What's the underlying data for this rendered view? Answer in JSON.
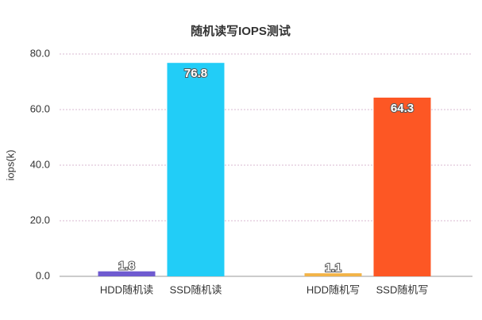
{
  "chart_data": {
    "type": "bar",
    "title": "随机读写IOPS测试",
    "y_label": "iops(k)",
    "categories": [
      "HDD随机读",
      "SSD随机读",
      "HDD随机写",
      "SSD随机写"
    ],
    "values": [
      1.8,
      76.8,
      1.1,
      64.3
    ],
    "colors": [
      "#6f5bd0",
      "#22cdf7",
      "#f2b347",
      "#fd5724"
    ],
    "ylim": [
      0,
      80
    ],
    "yticks": [
      {
        "value": 0,
        "label": "0.0"
      },
      {
        "value": 20,
        "label": "20.0"
      },
      {
        "value": 40,
        "label": "40.0"
      },
      {
        "value": 60,
        "label": "60.0"
      },
      {
        "value": 80,
        "label": "80.0"
      }
    ],
    "grid": true
  }
}
